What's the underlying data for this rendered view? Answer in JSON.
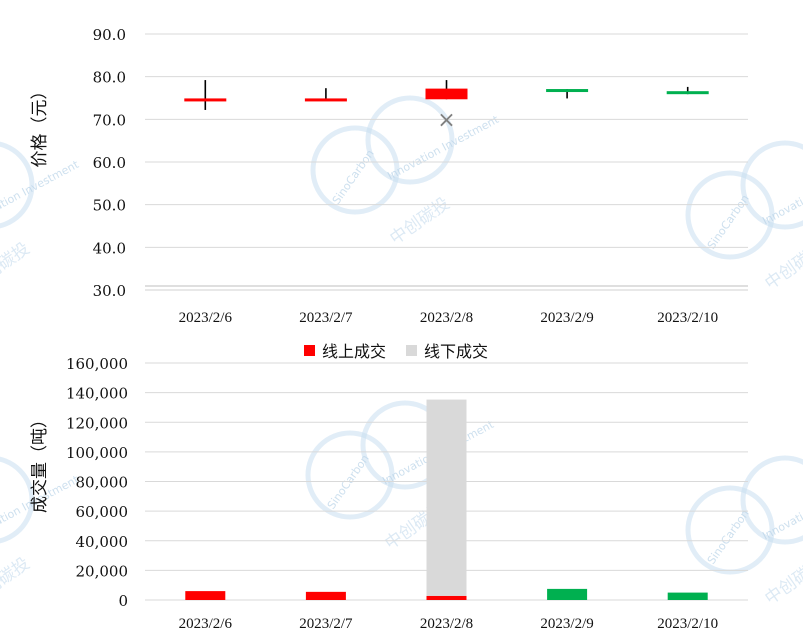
{
  "chart_data": [
    {
      "type": "candlestick",
      "ylabel": "价格（元）",
      "categories": [
        "2023/2/6",
        "2023/2/7",
        "2023/2/8",
        "2023/2/9",
        "2023/2/10"
      ],
      "ylim": [
        30,
        90
      ],
      "yticks": [
        "30.0",
        "40.0",
        "50.0",
        "60.0",
        "70.0",
        "80.0",
        "90.0"
      ],
      "grid": true,
      "candles": [
        {
          "open": 74.3,
          "close": 74.9,
          "high": 79.2,
          "low": 72.2,
          "color": "#ff0000"
        },
        {
          "open": 74.3,
          "close": 74.9,
          "high": 77.3,
          "low": 74.3,
          "color": "#ff0000"
        },
        {
          "open": 74.7,
          "close": 77.2,
          "high": 79.2,
          "low": 74.7,
          "color": "#ff0000"
        },
        {
          "open": 76.4,
          "close": 77.1,
          "high": 77.1,
          "low": 74.9,
          "color": "#00b050"
        },
        {
          "open": 75.9,
          "close": 76.6,
          "high": 77.6,
          "low": 75.9,
          "color": "#00b050"
        }
      ],
      "markers": [
        {
          "category": "2023/2/8",
          "value": 69.8,
          "symbol": "×",
          "color": "#808080"
        }
      ]
    },
    {
      "type": "bar",
      "stacked": true,
      "ylabel": "成交量（吨）",
      "categories": [
        "2023/2/6",
        "2023/2/7",
        "2023/2/8",
        "2023/2/9",
        "2023/2/10"
      ],
      "ylim": [
        0,
        160000
      ],
      "yticks": [
        "0",
        "20,000",
        "40,000",
        "60,000",
        "80,000",
        "100,000",
        "120,000",
        "140,000",
        "160,000"
      ],
      "grid": true,
      "legend": "top",
      "series": [
        {
          "name": "线上成交",
          "color": "#ff0000",
          "values": [
            6000,
            5500,
            2800,
            7500,
            5000
          ],
          "point_colors": [
            "#ff0000",
            "#ff0000",
            "#ff0000",
            "#00b050",
            "#00b050"
          ]
        },
        {
          "name": "线下成交",
          "color": "#d9d9d9",
          "values": [
            0,
            0,
            132500,
            0,
            0
          ]
        }
      ]
    }
  ],
  "watermark": {
    "brand": "SinoCarbon",
    "tagline": "Innovation Investment",
    "cn": "中创碳投",
    "color": "#c9dff0"
  }
}
